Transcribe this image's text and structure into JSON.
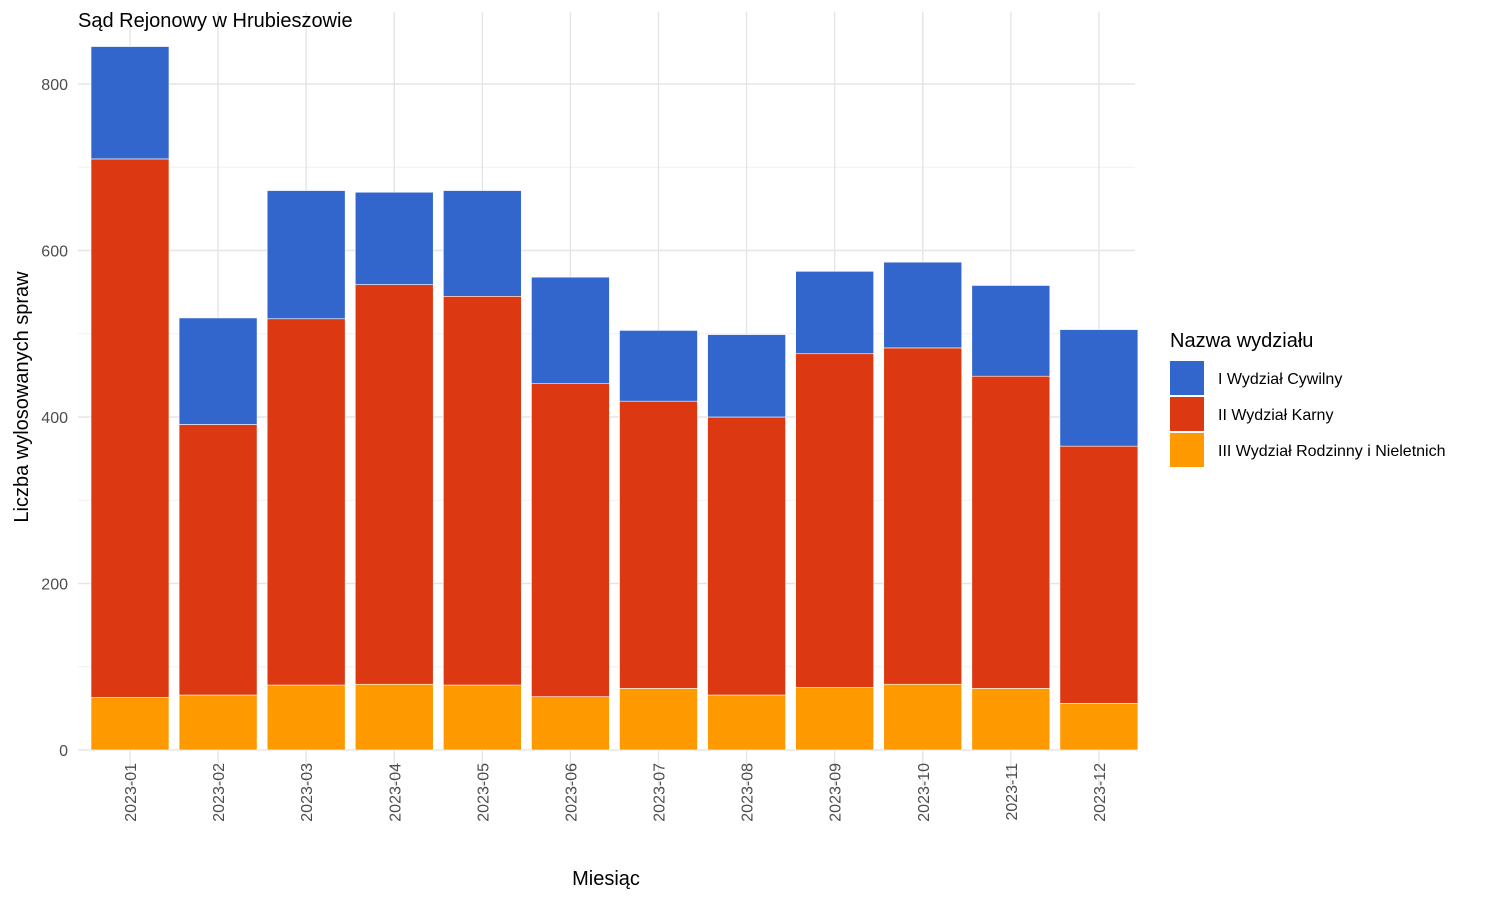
{
  "chart_data": {
    "type": "bar",
    "stacked": true,
    "title": "Sąd Rejonowy w Hrubieszowie",
    "xlabel": "Miesiąc",
    "ylabel": "Liczba wylosowanych spraw",
    "ylim": [
      0,
      850
    ],
    "yticks": [
      0,
      200,
      400,
      600,
      800
    ],
    "grid": true,
    "legend_position": "right",
    "legend_title": "Nazwa wydziału",
    "categories": [
      "2023-01",
      "2023-02",
      "2023-03",
      "2023-04",
      "2023-05",
      "2023-06",
      "2023-07",
      "2023-08",
      "2023-09",
      "2023-10",
      "2023-11",
      "2023-12"
    ],
    "series": [
      {
        "name": "III Wydział Rodzinny i Nieletnich",
        "color": "#ff9900",
        "values": [
          63,
          66,
          78,
          79,
          78,
          64,
          74,
          66,
          75,
          79,
          74,
          56
        ]
      },
      {
        "name": "II Wydział Karny",
        "color": "#dc3912",
        "values": [
          647,
          325,
          440,
          480,
          467,
          376,
          345,
          334,
          401,
          404,
          375,
          309
        ]
      },
      {
        "name": "I Wydział Cywilny",
        "color": "#3366cc",
        "values": [
          135,
          128,
          154,
          111,
          127,
          128,
          85,
          99,
          99,
          103,
          109,
          140
        ]
      }
    ],
    "legend_order": [
      "I Wydział Cywilny",
      "II Wydział Karny",
      "III Wydział Rodzinny i Nieletnich"
    ]
  }
}
